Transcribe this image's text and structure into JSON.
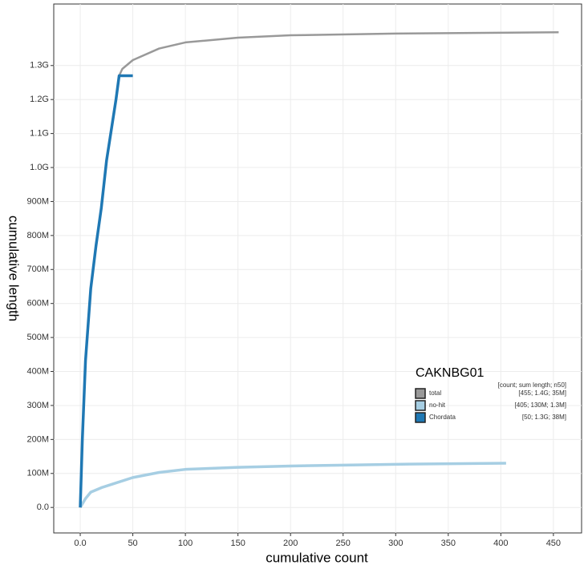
{
  "chart_data": {
    "type": "line",
    "x_label": "cumulative count",
    "y_label": "cumulative length",
    "xlim": [
      -25.2,
      476.8
    ],
    "ylim": [
      -75000000,
      1481000000
    ],
    "xticks": [
      {
        "value": 0,
        "label": "0.0"
      },
      50,
      100,
      150,
      200,
      250,
      300,
      350,
      400,
      450
    ],
    "yticks": [
      {
        "value": 0,
        "label": "0.0"
      },
      {
        "value": 100000000,
        "label": "100M"
      },
      {
        "value": 200000000,
        "label": "200M"
      },
      {
        "value": 300000000,
        "label": "300M"
      },
      {
        "value": 400000000,
        "label": "400M"
      },
      {
        "value": 500000000,
        "label": "500M"
      },
      {
        "value": 600000000,
        "label": "600M"
      },
      {
        "value": 700000000,
        "label": "700M"
      },
      {
        "value": 800000000,
        "label": "800M"
      },
      {
        "value": 900000000,
        "label": "900M"
      },
      {
        "value": 1000000000,
        "label": "1.0G"
      },
      {
        "value": 1100000000,
        "label": "1.1G"
      },
      {
        "value": 1200000000,
        "label": "1.2G"
      },
      {
        "value": 1300000000,
        "label": "1.3G"
      }
    ],
    "grid": true,
    "legend_title": "CAKNBG01",
    "legend_header": "[count; sum length; n50]",
    "series": [
      {
        "name": "total",
        "summary": "[455; 1.4G; 35M]",
        "color": "#999999",
        "x": [
          0,
          2,
          5,
          10,
          15,
          20,
          25,
          30,
          34,
          37,
          40,
          50,
          75,
          100,
          150,
          200,
          300,
          455
        ],
        "values": [
          0,
          200000000,
          432000000,
          644000000,
          770000000,
          880000000,
          1020000000,
          1120000000,
          1200000000,
          1270000000,
          1290000000,
          1316000000,
          1350000000,
          1368000000,
          1382000000,
          1389000000,
          1394000000,
          1398000000
        ]
      },
      {
        "name": "no-hit",
        "summary": "[405; 130M; 1.3M]",
        "color": "#a6cee3",
        "x": [
          0,
          5,
          10,
          20,
          30,
          50,
          75,
          100,
          150,
          200,
          300,
          405
        ],
        "values": [
          0,
          26000000,
          45000000,
          58000000,
          68000000,
          88000000,
          103000000,
          112000000,
          118000000,
          122000000,
          127000000,
          130000000
        ]
      },
      {
        "name": "Chordata",
        "summary": "[50; 1.3G; 38M]",
        "color": "#1f78b4",
        "x": [
          0,
          2,
          5,
          10,
          15,
          20,
          25,
          30,
          34,
          37,
          50
        ],
        "values": [
          0,
          200000000,
          432000000,
          644000000,
          770000000,
          880000000,
          1020000000,
          1120000000,
          1200000000,
          1270000000,
          1270000000
        ]
      }
    ]
  }
}
